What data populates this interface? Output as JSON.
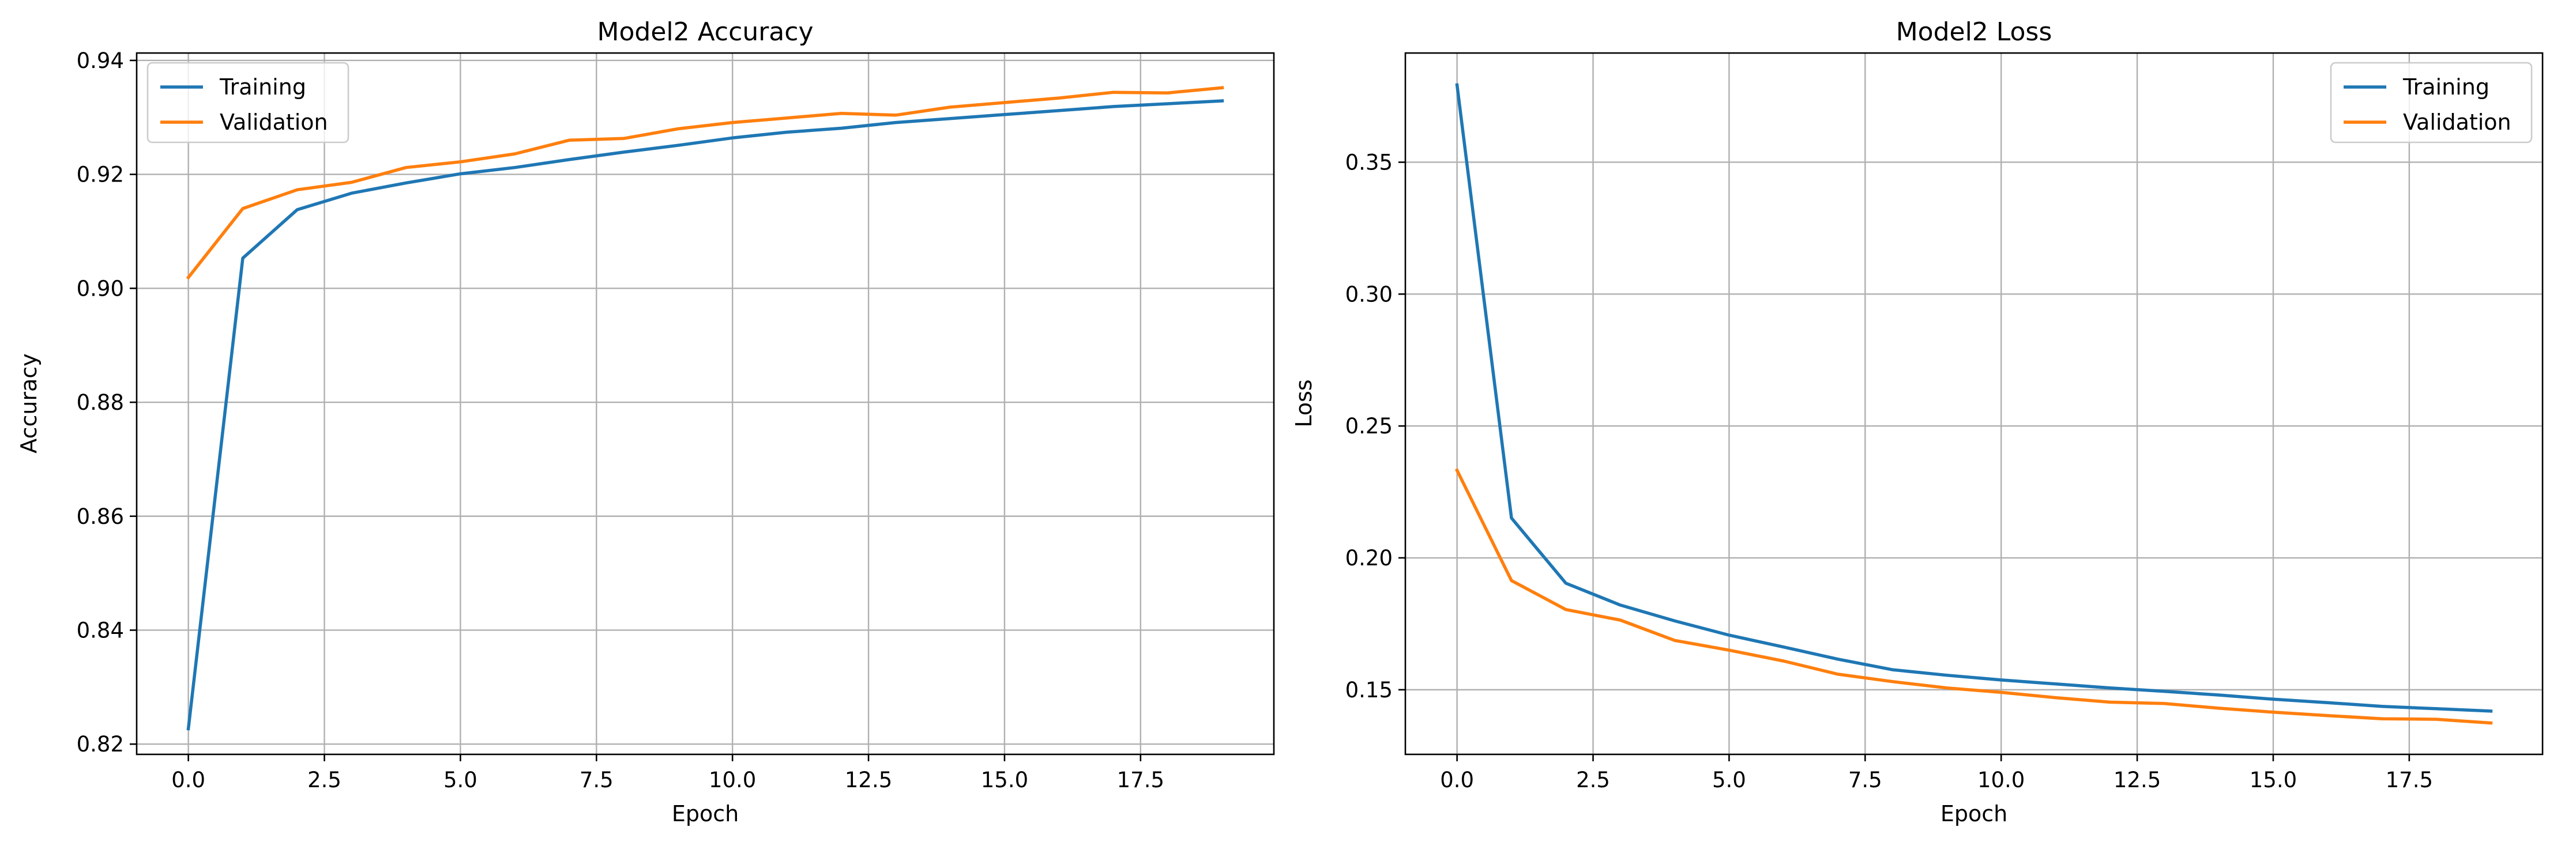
{
  "chart_data": [
    {
      "type": "line",
      "title": "Model2 Accuracy",
      "xlabel": "Epoch",
      "ylabel": "Accuracy",
      "xlim": [
        -0.95,
        19.95
      ],
      "ylim": [
        0.8182,
        0.9413
      ],
      "xticks": [
        0.0,
        2.5,
        5.0,
        7.5,
        10.0,
        12.5,
        15.0,
        17.5
      ],
      "xtick_labels": [
        "0.0",
        "2.5",
        "5.0",
        "7.5",
        "10.0",
        "12.5",
        "15.0",
        "17.5"
      ],
      "yticks": [
        0.82,
        0.84,
        0.86,
        0.88,
        0.9,
        0.92,
        0.94
      ],
      "ytick_labels": [
        "0.82",
        "0.84",
        "0.86",
        "0.88",
        "0.90",
        "0.92",
        "0.94"
      ],
      "grid": true,
      "legend_position": "upper left",
      "x": [
        0,
        1,
        2,
        3,
        4,
        5,
        6,
        7,
        8,
        9,
        10,
        11,
        12,
        13,
        14,
        15,
        16,
        17,
        18,
        19
      ],
      "series": [
        {
          "name": "Training",
          "color": "#1f77b4",
          "values": [
            0.8227,
            0.9053,
            0.9138,
            0.9167,
            0.9185,
            0.9201,
            0.9212,
            0.9226,
            0.9239,
            0.9251,
            0.9264,
            0.9274,
            0.9281,
            0.9291,
            0.9298,
            0.9305,
            0.9312,
            0.9319,
            0.9324,
            0.9329
          ]
        },
        {
          "name": "Validation",
          "color": "#ff7f0e",
          "values": [
            0.9019,
            0.914,
            0.9173,
            0.9186,
            0.9212,
            0.9222,
            0.9236,
            0.926,
            0.9263,
            0.928,
            0.9291,
            0.9299,
            0.9307,
            0.9304,
            0.9318,
            0.9326,
            0.9334,
            0.9344,
            0.9343,
            0.9352
          ]
        }
      ]
    },
    {
      "type": "line",
      "title": "Model2 Loss",
      "xlabel": "Epoch",
      "ylabel": "Loss",
      "xlim": [
        -0.95,
        19.95
      ],
      "ylim": [
        0.1255,
        0.3914
      ],
      "xticks": [
        0.0,
        2.5,
        5.0,
        7.5,
        10.0,
        12.5,
        15.0,
        17.5
      ],
      "xtick_labels": [
        "0.0",
        "2.5",
        "5.0",
        "7.5",
        "10.0",
        "12.5",
        "15.0",
        "17.5"
      ],
      "yticks": [
        0.15,
        0.2,
        0.25,
        0.3,
        0.35
      ],
      "ytick_labels": [
        "0.15",
        "0.20",
        "0.25",
        "0.30",
        "0.35"
      ],
      "grid": true,
      "legend_position": "upper right",
      "x": [
        0,
        1,
        2,
        3,
        4,
        5,
        6,
        7,
        8,
        9,
        10,
        11,
        12,
        13,
        14,
        15,
        16,
        17,
        18,
        19
      ],
      "series": [
        {
          "name": "Training",
          "color": "#1f77b4",
          "values": [
            0.3793,
            0.2151,
            0.1904,
            0.1821,
            0.1761,
            0.1707,
            0.1662,
            0.1616,
            0.1576,
            0.1555,
            0.1537,
            0.1522,
            0.1507,
            0.1494,
            0.148,
            0.1464,
            0.1451,
            0.1437,
            0.1428,
            0.1419
          ]
        },
        {
          "name": "Validation",
          "color": "#ff7f0e",
          "values": [
            0.2332,
            0.1914,
            0.1804,
            0.1764,
            0.1687,
            0.165,
            0.1609,
            0.1559,
            0.1531,
            0.1507,
            0.149,
            0.147,
            0.1453,
            0.1448,
            0.143,
            0.1415,
            0.1402,
            0.139,
            0.1388,
            0.1374
          ]
        }
      ]
    }
  ]
}
